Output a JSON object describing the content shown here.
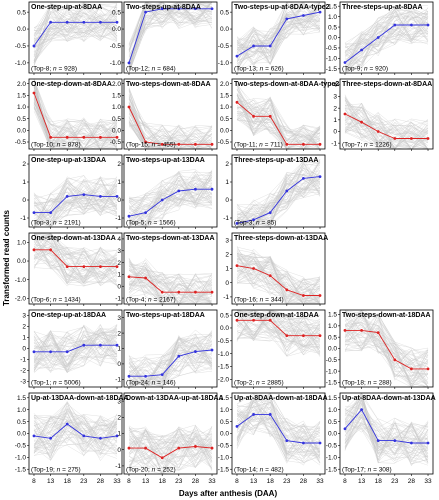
{
  "chart_data": {
    "type": "line",
    "xlabel": "Days after anthesis (DAA)",
    "ylabel": "Transformed read counts",
    "x": [
      8,
      13,
      18,
      23,
      28,
      33
    ],
    "colors": {
      "up": "#3333dd",
      "down": "#dd2222",
      "background": "#c8c8c8"
    },
    "grid": false,
    "panels": [
      {
        "title": "One-step-up-at-8DAA",
        "top": 8,
        "n": 928,
        "color": "up",
        "values": [
          -0.5,
          0.2,
          0.2,
          0.2,
          0.2,
          0.2
        ]
      },
      {
        "title": "Two-steps-up-at-8DAA",
        "top": 12,
        "n": 684,
        "color": "up",
        "values": [
          -1.0,
          0.5,
          0.6,
          0.6,
          0.6,
          0.6
        ]
      },
      {
        "title": "Two-steps-up-at-8DAA-type2",
        "top": 13,
        "n": 626,
        "color": "up",
        "values": [
          -0.8,
          -0.5,
          -0.5,
          0.3,
          0.4,
          0.5
        ]
      },
      {
        "title": "Three-steps-up-at-8DAA",
        "top": 9,
        "n": 920,
        "color": "up",
        "values": [
          -1.2,
          -0.6,
          0.0,
          0.6,
          0.6,
          0.6
        ]
      },
      {
        "title": "One-step-down-at-8DAA",
        "top": 10,
        "n": 878,
        "color": "down",
        "values": [
          1.6,
          -0.3,
          -0.3,
          -0.3,
          -0.3,
          -0.3
        ]
      },
      {
        "title": "Two-steps-down-at-8DAA",
        "top": 15,
        "n": 455,
        "color": "down",
        "values": [
          1.0,
          -0.5,
          -0.6,
          -0.6,
          -0.6,
          -0.6
        ]
      },
      {
        "title": "Two-steps-down-at-8DAA-type2",
        "top": 11,
        "n": 711,
        "color": "down",
        "values": [
          1.2,
          0.6,
          0.6,
          -0.6,
          -0.6,
          -0.6
        ]
      },
      {
        "title": "Three-steps-down-at-8DAA",
        "top": 7,
        "n": 1226,
        "color": "down",
        "values": [
          1.5,
          0.8,
          0.0,
          -0.6,
          -0.6,
          -0.6
        ]
      },
      {
        "title": "One-step-up-at-13DAA",
        "top": 3,
        "n": 2191,
        "color": "up",
        "values": [
          -0.7,
          -0.7,
          0.2,
          0.3,
          0.2,
          0.2
        ]
      },
      {
        "title": "Two-steps-up-at-13DAA",
        "top": 5,
        "n": 1566,
        "color": "up",
        "values": [
          -0.9,
          -0.7,
          0.0,
          0.5,
          0.6,
          0.6
        ]
      },
      {
        "title": "Three-steps-up-at-13DAA",
        "top": 3,
        "n": 85,
        "color": "up",
        "values": [
          -1.3,
          -1.1,
          -0.7,
          0.5,
          1.2,
          1.3
        ]
      },
      {
        "title": "One-step-down-at-13DAA",
        "top": 6,
        "n": 1434,
        "color": "down",
        "values": [
          0.6,
          0.6,
          -0.3,
          -0.3,
          -0.3,
          -0.3
        ]
      },
      {
        "title": "Two-steps-down-at-13DAA",
        "top": 4,
        "n": 2167,
        "color": "down",
        "values": [
          0.8,
          0.7,
          -0.5,
          -0.5,
          -0.5,
          -0.5
        ]
      },
      {
        "title": "Three-steps-down-at-13DAA",
        "top": 16,
        "n": 344,
        "color": "down",
        "values": [
          1.2,
          1.0,
          0.5,
          -0.5,
          -0.9,
          -0.9
        ]
      },
      {
        "title": "One-step-up-at-18DAA",
        "top": 1,
        "n": 5006,
        "color": "up",
        "values": [
          -0.3,
          -0.3,
          -0.3,
          0.3,
          0.3,
          0.3
        ]
      },
      {
        "title": "Two-steps-up-at-18DAA",
        "top": 24,
        "n": 146,
        "color": "up",
        "values": [
          -0.8,
          -0.8,
          -0.7,
          0.5,
          0.8,
          0.9
        ]
      },
      {
        "title": "One-step-down-at-18DAA",
        "top": 2,
        "n": 2885,
        "color": "down",
        "values": [
          0.3,
          0.3,
          0.3,
          -0.3,
          -0.3,
          -0.3
        ]
      },
      {
        "title": "Two-steps-down-at-18DAA",
        "top": 18,
        "n": 288,
        "color": "down",
        "values": [
          0.8,
          0.8,
          0.7,
          -0.5,
          -0.9,
          -0.9
        ]
      },
      {
        "title": "Up-at-13DAA-down-at-18DAA",
        "top": 19,
        "n": 275,
        "color": "up",
        "values": [
          -0.1,
          -0.2,
          0.4,
          -0.1,
          -0.2,
          -0.1
        ]
      },
      {
        "title": "Down-at-13DAA-up-at-18DAA",
        "top": 20,
        "n": 252,
        "color": "down",
        "values": [
          0.1,
          0.1,
          -0.5,
          0.1,
          0.2,
          0.1
        ]
      },
      {
        "title": "Up-at-8DAA-down-at-18DAA",
        "top": 14,
        "n": 482,
        "color": "up",
        "values": [
          0.3,
          0.8,
          0.8,
          -0.3,
          -0.4,
          -0.4
        ]
      },
      {
        "title": "Up-at-8DAA-down-at-13DAA",
        "top": 17,
        "n": 308,
        "color": "up",
        "values": [
          0.2,
          1.0,
          -0.3,
          -0.3,
          -0.4,
          -0.4
        ]
      }
    ],
    "row_yticks": [
      [
        "-1.0",
        "-0.5",
        "0.0",
        "0.5"
      ],
      [
        "-0.5",
        "0.0",
        "0.5",
        "1.0",
        "1.5",
        "2.0"
      ],
      [
        "-1",
        "0",
        "1",
        "2"
      ],
      [
        "-1",
        "0",
        "1",
        "2",
        "3"
      ],
      [
        "-3",
        "-2",
        "-1",
        "0",
        "1",
        "2",
        "3"
      ],
      [
        "-1.5",
        "-1.0",
        "-0.5",
        "0.0",
        "0.5",
        "1.0",
        "1.5"
      ]
    ],
    "row_ylim": [
      [
        -1.3,
        0.8
      ],
      [
        -0.8,
        2.2
      ],
      [
        -1.5,
        2.5
      ],
      [
        -1.5,
        3.5
      ],
      [
        -3.5,
        3.5
      ],
      [
        -1.7,
        1.7
      ]
    ],
    "panel_yticks": {
      "3": [
        [
          "-1.5",
          "-1.0",
          "-0.5",
          "0.0",
          "0.5",
          "1.0",
          "1.5"
        ],
        [
          -1.7,
          1.7
        ]
      ],
      "7": [
        [
          "-1",
          "0",
          "1",
          "2",
          "3",
          "4"
        ],
        [
          -1.5,
          4.5
        ]
      ],
      "10": [
        [
          "-1",
          "0",
          "1",
          "2"
        ],
        [
          -1.5,
          2.5
        ]
      ],
      "11": [
        [
          "-2.0",
          "-1.0",
          "0.0",
          "1.0"
        ],
        [
          -2.3,
          1.5
        ]
      ],
      "12": [
        [
          "-1",
          "0",
          "1",
          "2",
          "3",
          "4"
        ],
        [
          -1.5,
          4.5
        ]
      ],
      "15": [
        [
          "-1",
          "0",
          "1",
          "2",
          "3"
        ],
        [
          -1.5,
          3.5
        ]
      ],
      "16": [
        [
          "-2.0",
          "-1.5",
          "-1.0",
          "-0.5",
          "0.0",
          "0.5"
        ],
        [
          -2.3,
          0.7
        ]
      ],
      "17": [
        [
          "-1.5",
          "-1.0",
          "-0.5",
          "0.0",
          "0.5",
          "1.0",
          "1.5"
        ],
        [
          -1.7,
          1.7
        ]
      ],
      "19": [
        [
          "-1",
          "0",
          "1",
          "2",
          "3"
        ],
        [
          -1.5,
          3.5
        ]
      ]
    }
  }
}
